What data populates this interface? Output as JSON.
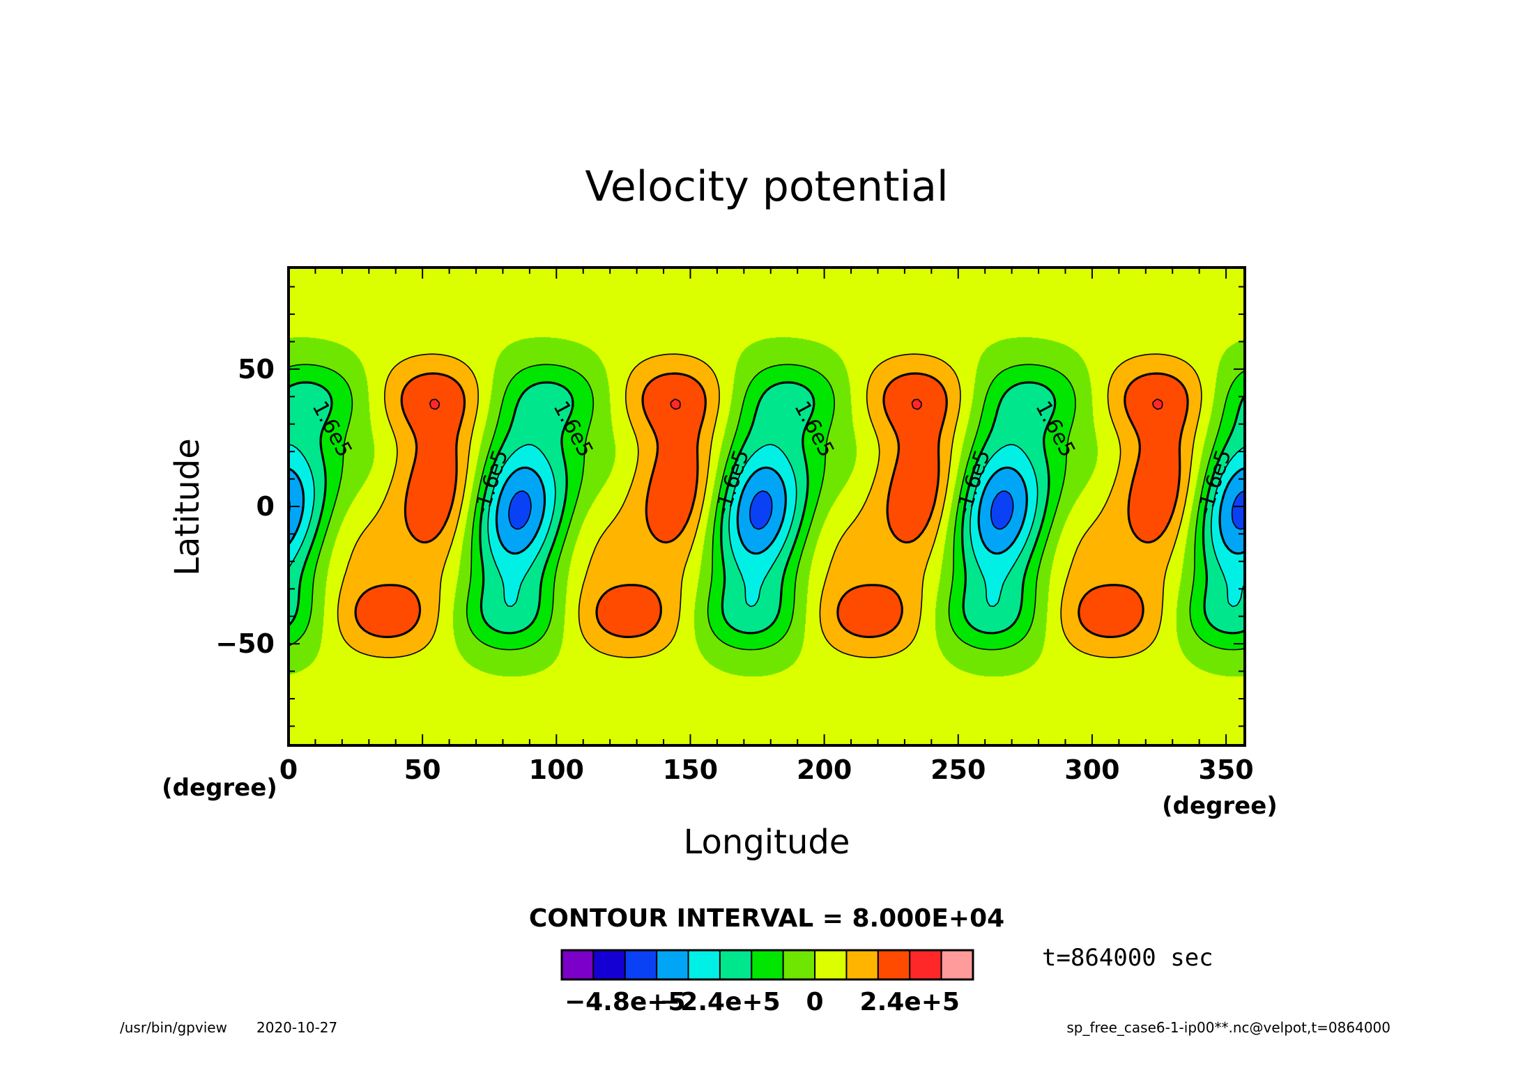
{
  "chart_data": {
    "type": "heatmap",
    "title": "Velocity potential",
    "xlabel": "Longitude",
    "ylabel": "Latitude",
    "x_unit": "(degree)",
    "y_unit": "(degree)",
    "xlim": [
      0,
      357
    ],
    "ylim": [
      -87,
      87
    ],
    "x_ticks": [
      0,
      50,
      100,
      150,
      200,
      250,
      300,
      350
    ],
    "y_ticks": [
      -50,
      0,
      50
    ],
    "x_tick_labels": [
      "0",
      "50",
      "100",
      "150",
      "200",
      "250",
      "300",
      "350"
    ],
    "y_tick_labels": [
      "−50",
      "0",
      "50"
    ],
    "contour_interval_text": "CONTOUR INTERVAL = 8.000E+04",
    "contour_interval": 80000,
    "contour_labels": [
      "1.6e5",
      "-1.6e5"
    ],
    "colorbar": {
      "boundaries": [
        -560000,
        -480000,
        -400000,
        -320000,
        -240000,
        -160000,
        -80000,
        0,
        80000,
        160000,
        240000,
        320000
      ],
      "colors": [
        "#7b00c8",
        "#1400d2",
        "#0a41f5",
        "#00a6f5",
        "#00f0e6",
        "#00e68c",
        "#00e600",
        "#6ee600",
        "#dcff00",
        "#ffb400",
        "#ff4b00",
        "#ff2828",
        "#ff9b9b"
      ],
      "tick_labels": [
        "−4.8e+5",
        "−2.4e+5",
        "0",
        "2.4e+5"
      ]
    },
    "wave_number": 4,
    "wave_phase_speed_note": "",
    "grid": false
  },
  "annotation": {
    "time": "t=864000 sec"
  },
  "footer": {
    "program": "/usr/bin/gpview",
    "date": "2020-10-27",
    "source": "sp_free_case6-1-ip00**.nc@velpot,t=0864000"
  }
}
